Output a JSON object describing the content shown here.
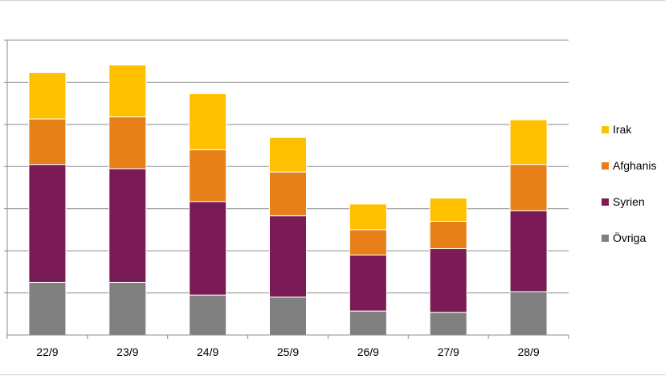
{
  "chart_data": {
    "type": "bar",
    "stacked": true,
    "categories": [
      "22/9",
      "23/9",
      "24/9",
      "25/9",
      "26/9",
      "27/9",
      "28/9"
    ],
    "series": [
      {
        "name": "Övriga",
        "color": "#808080",
        "values": [
          12.5,
          12.5,
          9.5,
          9.0,
          5.7,
          5.4,
          10.3
        ]
      },
      {
        "name": "Syrien",
        "color": "#7b1b55",
        "values": [
          28.0,
          27.0,
          22.2,
          19.3,
          13.3,
          15.1,
          19.2
        ]
      },
      {
        "name": "Afghanistan",
        "color": "#e8801a",
        "values": [
          10.8,
          12.3,
          12.3,
          10.4,
          6.0,
          6.5,
          11.0
        ]
      },
      {
        "name": "Irak",
        "color": "#ffc000",
        "values": [
          11.0,
          12.3,
          13.3,
          8.2,
          6.1,
          5.5,
          10.6
        ]
      }
    ],
    "ylim": [
      0,
      70
    ],
    "y_gridlines": 7,
    "ytick_labels_visible": false,
    "grid": true,
    "legend_position": "right",
    "legend_order": [
      "Irak",
      "Afghanistan",
      "Syrien",
      "Övriga"
    ],
    "legend_label_overrides": {
      "Afghanistan": "Afghanis"
    }
  }
}
